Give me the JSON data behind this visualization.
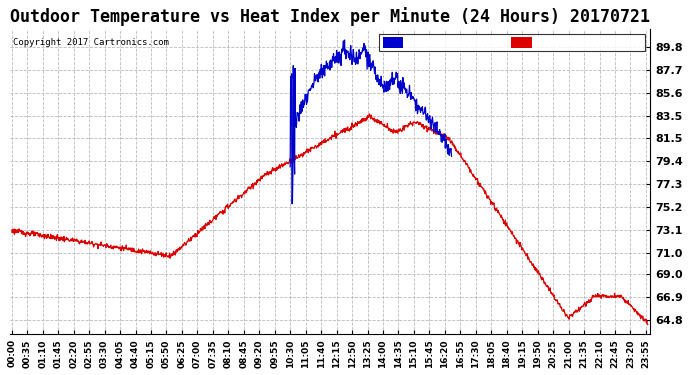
{
  "title": "Outdoor Temperature vs Heat Index per Minute (24 Hours) 20170721",
  "copyright": "Copyright 2017 Cartronics.com",
  "ylim": [
    63.5,
    91.5
  ],
  "yticks": [
    89.8,
    87.7,
    85.6,
    83.5,
    81.5,
    79.4,
    77.3,
    75.2,
    73.1,
    71.0,
    69.0,
    66.9,
    64.8
  ],
  "temp_color": "#dd0000",
  "heat_color": "#0000cc",
  "bg_color": "#ffffff",
  "grid_color": "#bbbbbb",
  "title_fontsize": 12,
  "legend_heat_bg": "#0000cc",
  "legend_temp_bg": "#dd0000",
  "x_tick_interval": 35,
  "n_points": 1440
}
